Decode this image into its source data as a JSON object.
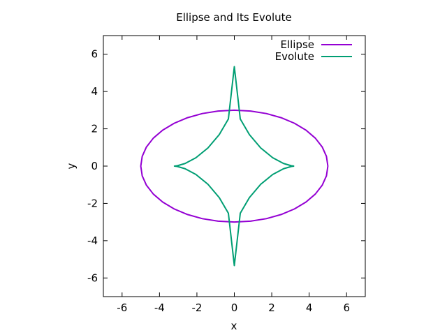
{
  "chart_data": {
    "type": "line",
    "title": "Ellipse and Its Evolute",
    "xlabel": "x",
    "ylabel": "y",
    "xlim": [
      -7,
      7
    ],
    "ylim": [
      -7,
      7
    ],
    "xticks": [
      -6,
      -4,
      -2,
      0,
      2,
      4,
      6
    ],
    "yticks": [
      -6,
      -4,
      -2,
      0,
      2,
      4,
      6
    ],
    "tick_labels_x": [
      "-6",
      "-4",
      "-2",
      "0",
      "2",
      "4",
      "6"
    ],
    "tick_labels_y": [
      "-6",
      "-4",
      "-2",
      "0",
      "2",
      "4",
      "6"
    ],
    "grid": false,
    "legend_position": "top-right",
    "series": [
      {
        "name": "Ellipse",
        "color": "#9400d3",
        "x": [
          5.0,
          4.924,
          4.698,
          4.33,
          3.83,
          3.214,
          2.5,
          1.71,
          0.868,
          0.0,
          -0.868,
          -1.71,
          -2.5,
          -3.214,
          -3.83,
          -4.33,
          -4.698,
          -4.924,
          -5.0,
          -4.924,
          -4.698,
          -4.33,
          -3.83,
          -3.214,
          -2.5,
          -1.71,
          -0.868,
          0.0,
          0.868,
          1.71,
          2.5,
          3.214,
          3.83,
          4.33,
          4.698,
          4.924,
          5.0
        ],
        "y": [
          0.0,
          0.521,
          1.026,
          1.5,
          1.928,
          2.298,
          2.598,
          2.819,
          2.954,
          3.0,
          2.954,
          2.819,
          2.598,
          2.298,
          1.928,
          1.5,
          1.026,
          0.521,
          0.0,
          -0.521,
          -1.026,
          -1.5,
          -1.928,
          -2.298,
          -2.598,
          -2.819,
          -2.954,
          -3.0,
          -2.954,
          -2.819,
          -2.598,
          -2.298,
          -1.928,
          -1.5,
          -1.026,
          -0.521,
          0.0
        ]
      },
      {
        "name": "Evolute",
        "color": "#009e73",
        "x": [
          3.2,
          3.048,
          2.632,
          2.052,
          1.411,
          0.806,
          0.318,
          0.0,
          -0.318,
          -0.806,
          -1.411,
          -2.052,
          -2.632,
          -3.048,
          -3.2,
          -3.048,
          -2.632,
          -2.052,
          -1.411,
          -0.806,
          -0.318,
          0.0,
          0.318,
          0.806,
          1.411,
          2.052,
          2.632,
          3.048,
          3.2
        ],
        "y": [
          0.0,
          0.018,
          0.141,
          0.45,
          0.974,
          1.688,
          2.525,
          5.333,
          2.525,
          1.688,
          0.974,
          0.45,
          0.141,
          0.018,
          0.0,
          -0.018,
          -0.141,
          -0.45,
          -0.974,
          -1.688,
          -2.525,
          -5.333,
          -2.525,
          -1.688,
          -0.974,
          -0.45,
          -0.141,
          -0.018,
          0.0
        ]
      }
    ]
  }
}
